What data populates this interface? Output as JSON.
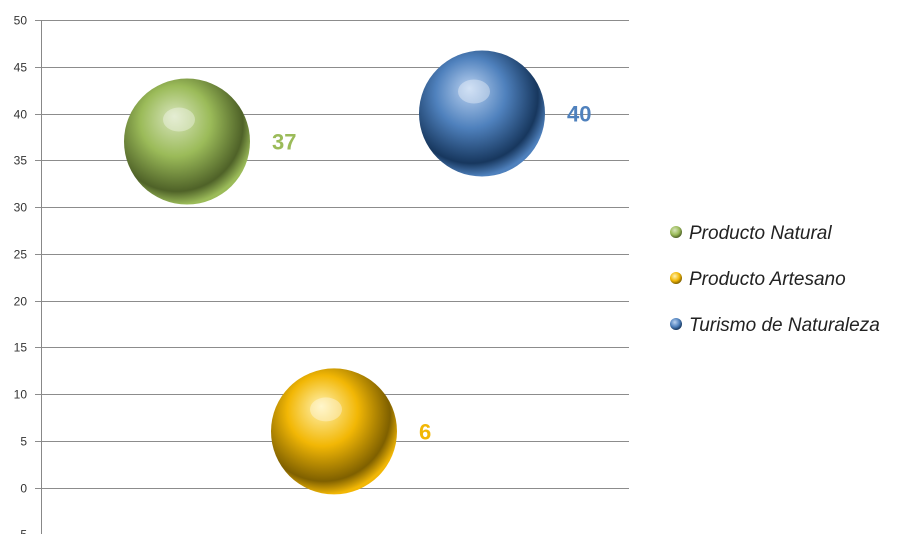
{
  "chart_data": {
    "type": "scatter",
    "title": "",
    "xlabel": "",
    "ylabel": "",
    "ylim": [
      -5,
      50
    ],
    "ytick_step": 5,
    "grid": true,
    "legend_position": "right",
    "series": [
      {
        "name": "Producto Natural",
        "x": 1,
        "y": 37,
        "label": "37",
        "color": "#9BBB59",
        "color_dark": "#4F6228",
        "color_light": "#D7E4BC"
      },
      {
        "name": "Producto Artesano",
        "x": 2,
        "y": 6,
        "label": "6",
        "color": "#F2B705",
        "color_dark": "#7F6000",
        "color_light": "#FFF2B0"
      },
      {
        "name": "Turismo de Naturaleza",
        "x": 3,
        "y": 40,
        "label": "40",
        "color": "#4F81BD",
        "color_dark": "#17375E",
        "color_light": "#B9D1F0"
      }
    ]
  }
}
